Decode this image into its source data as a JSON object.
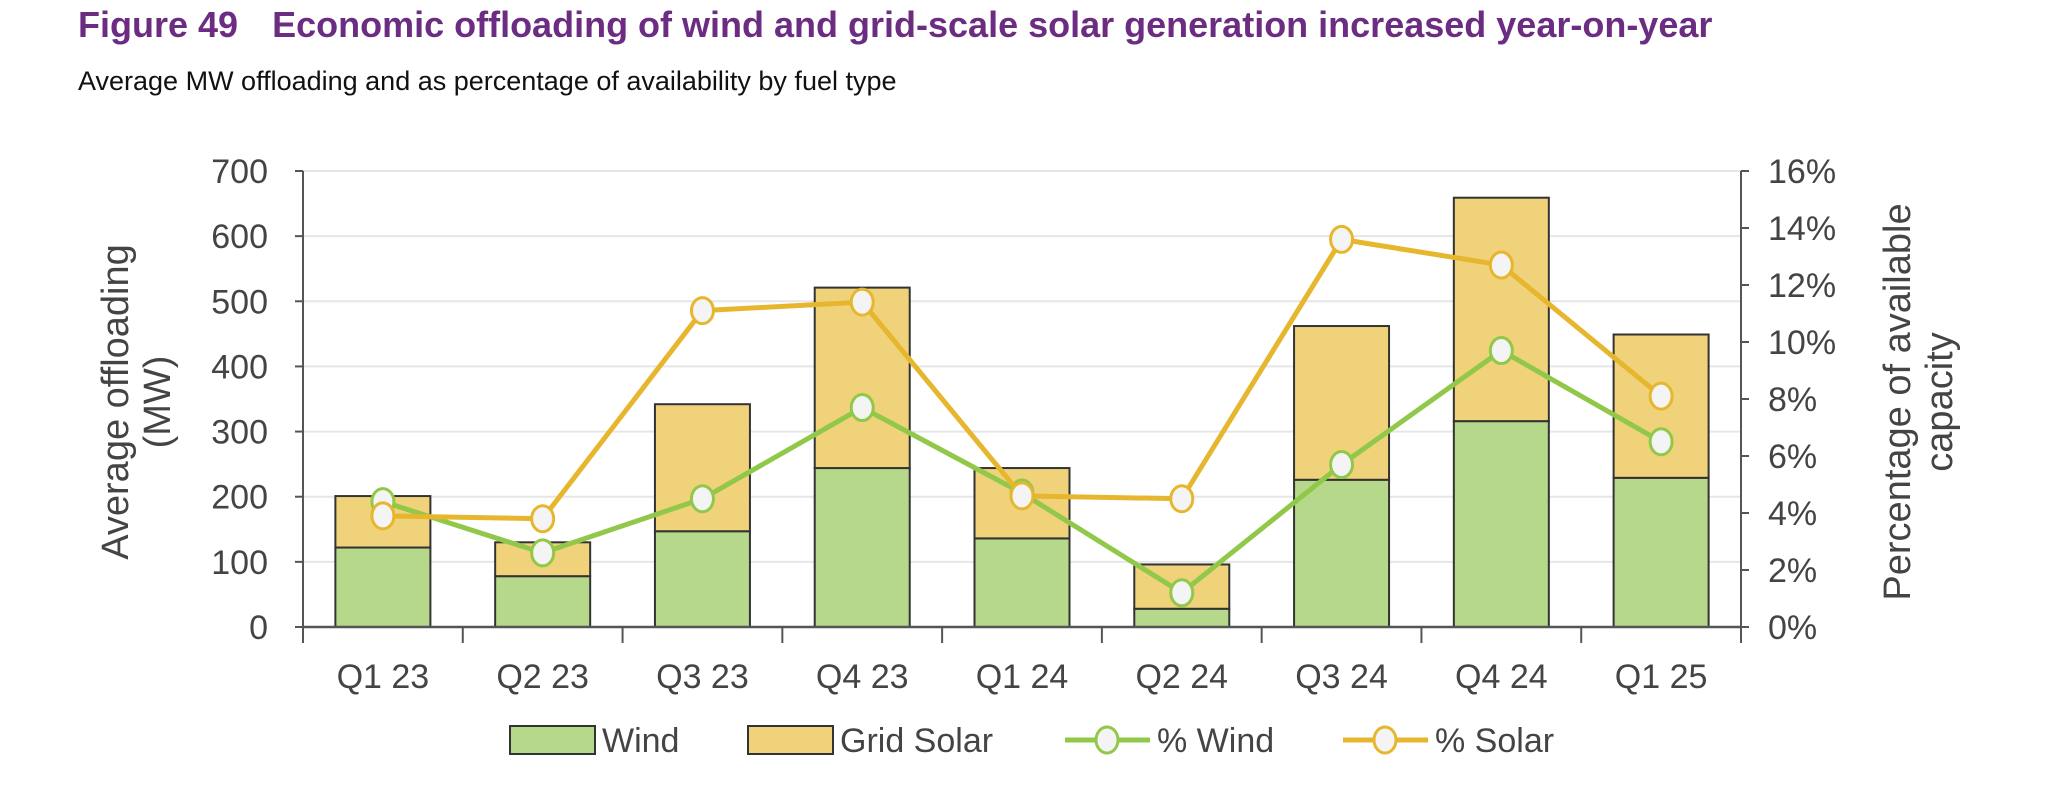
{
  "figure_number": "Figure 49",
  "title": "Economic offloading of wind and grid-scale solar generation increased year-on-year",
  "subtitle": "Average MW offloading and as percentage of availability by fuel type",
  "chart_data": {
    "type": "bar",
    "stacked": true,
    "categories": [
      "Q1 23",
      "Q2 23",
      "Q3 23",
      "Q4 23",
      "Q1 24",
      "Q2 24",
      "Q3 24",
      "Q4 24",
      "Q1 25"
    ],
    "ylabel": "Average offloading (MW)",
    "y2label": "Percentage of available capacity",
    "ylim": [
      0,
      700
    ],
    "yticks": [
      "0",
      "100",
      "200",
      "300",
      "400",
      "500",
      "600",
      "700"
    ],
    "y2lim": [
      0,
      16
    ],
    "y2ticks": [
      "0%",
      "2%",
      "4%",
      "6%",
      "8%",
      "10%",
      "12%",
      "14%",
      "16%"
    ],
    "grid": true,
    "legend_position": "bottom",
    "series": [
      {
        "name": "Wind",
        "type": "bar",
        "axis": "left",
        "color": "#B5D88A",
        "values": [
          122,
          78,
          147,
          244,
          136,
          28,
          226,
          316,
          229
        ]
      },
      {
        "name": "Grid Solar",
        "type": "bar",
        "axis": "left",
        "color": "#EFD27A",
        "values": [
          79,
          52,
          195,
          277,
          108,
          68,
          236,
          343,
          220
        ]
      },
      {
        "name": "% Wind",
        "type": "line",
        "axis": "right",
        "color": "#92C84A",
        "values": [
          4.4,
          2.6,
          4.5,
          7.7,
          4.7,
          1.2,
          5.7,
          9.7,
          6.5
        ]
      },
      {
        "name": "% Solar",
        "type": "line",
        "axis": "right",
        "color": "#E6B72E",
        "values": [
          3.9,
          3.8,
          11.1,
          11.4,
          4.6,
          4.5,
          13.6,
          12.7,
          8.1
        ]
      }
    ]
  }
}
